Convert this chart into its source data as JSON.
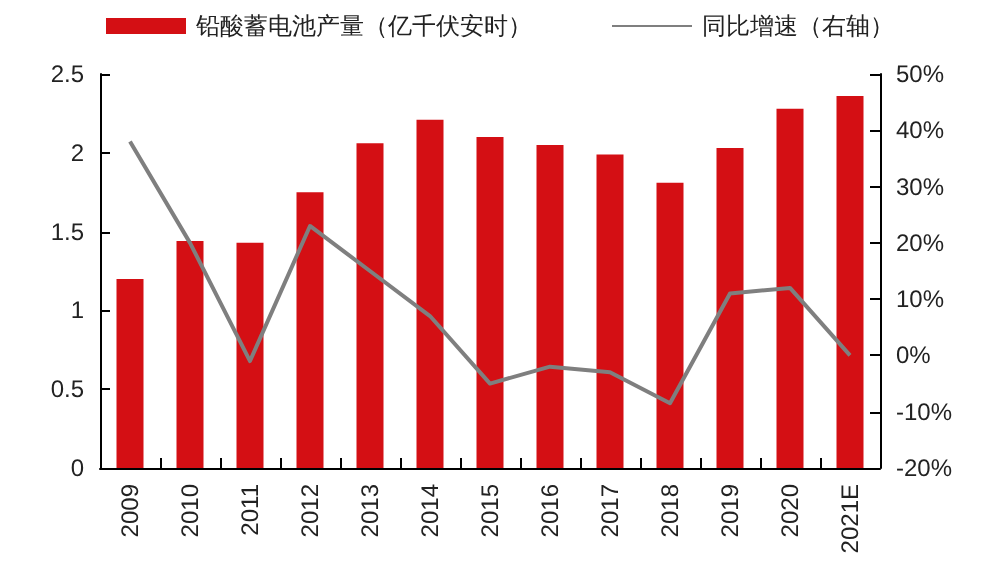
{
  "chart_data": {
    "type": "bar",
    "categories": [
      "2009",
      "2010",
      "2011",
      "2012",
      "2013",
      "2014",
      "2015",
      "2016",
      "2017",
      "2018",
      "2019",
      "2020",
      "2021E"
    ],
    "series": [
      {
        "name": "铅酸蓄电池产量（亿千伏安时）",
        "color": "#d40f14",
        "values": [
          1.2,
          1.44,
          1.43,
          1.75,
          2.06,
          2.21,
          2.1,
          2.05,
          1.99,
          1.81,
          2.03,
          2.28,
          2.36
        ]
      },
      {
        "name": "同比增速（右轴）",
        "type": "line",
        "axis": "y2",
        "color": "#7f7f7f",
        "values": [
          38,
          20,
          -1,
          23,
          15,
          7,
          -5,
          -2,
          -3,
          -8.5,
          11,
          12,
          0
        ]
      }
    ],
    "ylim": [
      0,
      2.5
    ],
    "yticks": [
      0,
      0.5,
      1,
      1.5,
      2,
      2.5
    ],
    "y2lim": [
      -20,
      50
    ],
    "y2ticks": [
      {
        "value": -20,
        "label": "-20%"
      },
      {
        "value": -10,
        "label": "-10%"
      },
      {
        "value": 0,
        "label": "0%"
      },
      {
        "value": 10,
        "label": "10%"
      },
      {
        "value": 20,
        "label": "20%"
      },
      {
        "value": 30,
        "label": "30%"
      },
      {
        "value": 40,
        "label": "40%"
      },
      {
        "value": 50,
        "label": "50%"
      }
    ],
    "grid": false,
    "legend": "top",
    "marker": "none"
  }
}
